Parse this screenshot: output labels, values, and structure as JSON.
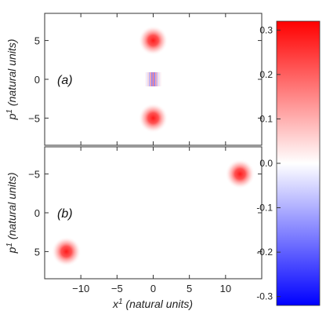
{
  "chart_data": [
    {
      "type": "heatmap",
      "panel": "(a)",
      "ylabel_base": "p",
      "ylabel_sup": "1",
      "ylabel_rest": " (natural units)",
      "xlim": [
        -15,
        15
      ],
      "ylim": [
        -8.5,
        8.5
      ],
      "y_inverted": false,
      "yticks": [
        -5,
        0,
        5
      ],
      "features": [
        {
          "kind": "gaussian",
          "x": 0,
          "y": 5,
          "peak": 0.32
        },
        {
          "kind": "gaussian",
          "x": 0,
          "y": -5,
          "peak": 0.32
        },
        {
          "kind": "interference",
          "x": 0,
          "y": 0,
          "amplitude": 0.2
        }
      ]
    },
    {
      "type": "heatmap",
      "panel": "(b)",
      "ylabel_base": "p",
      "ylabel_sup": "1",
      "ylabel_rest": " (natural units)",
      "xlabel_base": "x",
      "xlabel_sup": "1",
      "xlabel_rest": " (natural units)",
      "xlim": [
        -15,
        15
      ],
      "ylim": [
        -8.5,
        8.5
      ],
      "y_inverted": true,
      "xticks": [
        -10,
        -5,
        0,
        5,
        10
      ],
      "yticks": [
        -5,
        0,
        5
      ],
      "features": [
        {
          "kind": "gaussian",
          "x": 12,
          "y": -5,
          "peak": 0.32
        },
        {
          "kind": "gaussian",
          "x": -12,
          "y": 5,
          "peak": 0.32
        },
        {
          "kind": "faint",
          "x": 9,
          "y": 0,
          "amplitude": 0.01
        }
      ]
    }
  ],
  "colorbar": {
    "min": -0.32,
    "max": 0.32,
    "ticks": [
      "0.3",
      "0.2",
      "0.1",
      "0.0",
      "-0.1",
      "-0.2",
      "-0.3"
    ],
    "tick_values": [
      0.3,
      0.2,
      0.1,
      0.0,
      -0.1,
      -0.2,
      -0.3
    ],
    "colors": {
      "positive": "#ff0000",
      "zero": "#ffffff",
      "negative": "#0000ff"
    }
  }
}
